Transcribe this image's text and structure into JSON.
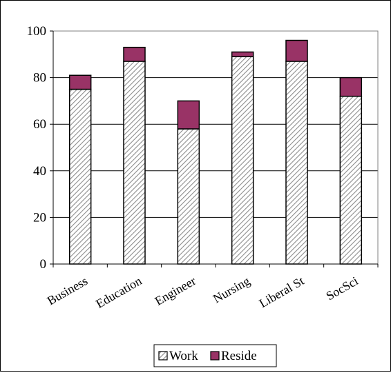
{
  "chart_data": {
    "type": "bar",
    "stacked": true,
    "categories": [
      "Business",
      "Education",
      "Engineer",
      "Nursing",
      "Liberal St",
      "SocSci"
    ],
    "series": [
      {
        "name": "Work",
        "values": [
          75,
          87,
          58,
          89,
          87,
          72
        ],
        "fill": "hatched",
        "color": "#9a9a9a"
      },
      {
        "name": "Reside",
        "values": [
          6,
          6,
          12,
          2,
          9,
          8
        ],
        "fill": "solid",
        "color": "#993366"
      }
    ],
    "ylim": [
      0,
      100
    ],
    "yticks": [
      0,
      20,
      40,
      60,
      80,
      100
    ],
    "grid": true,
    "legend_position": "bottom"
  }
}
